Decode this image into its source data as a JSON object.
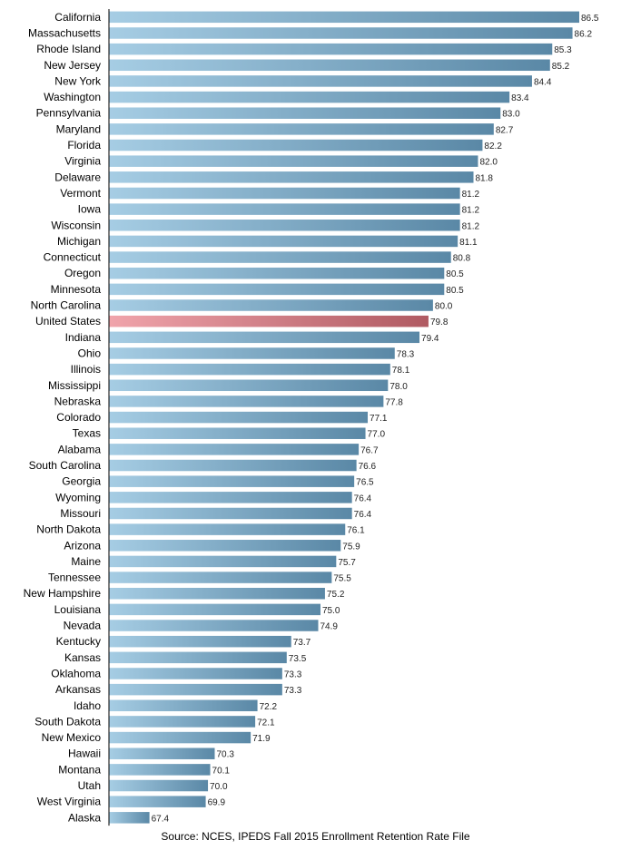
{
  "chart_data": {
    "type": "bar",
    "orientation": "horizontal",
    "categories": [
      "California",
      "Massachusetts",
      "Rhode Island",
      "New Jersey",
      "New York",
      "Washington",
      "Pennsylvania",
      "Maryland",
      "Florida",
      "Virginia",
      "Delaware",
      "Vermont",
      "Iowa",
      "Wisconsin",
      "Michigan",
      "Connecticut",
      "Oregon",
      "Minnesota",
      "North Carolina",
      "United States",
      "Indiana",
      "Ohio",
      "Illinois",
      "Mississippi",
      "Nebraska",
      "Colorado",
      "Texas",
      "Alabama",
      "South Carolina",
      "Georgia",
      "Wyoming",
      "Missouri",
      "North Dakota",
      "Arizona",
      "Maine",
      "Tennessee",
      "New Hampshire",
      "Louisiana",
      "Nevada",
      "Kentucky",
      "Kansas",
      "Oklahoma",
      "Arkansas",
      "Idaho",
      "South Dakota",
      "New Mexico",
      "Hawaii",
      "Montana",
      "Utah",
      "West Virginia",
      "Alaska"
    ],
    "values": [
      86.5,
      86.2,
      85.3,
      85.2,
      84.4,
      83.4,
      83.0,
      82.7,
      82.2,
      82.0,
      81.8,
      81.2,
      81.2,
      81.2,
      81.1,
      80.8,
      80.5,
      80.5,
      80.0,
      79.8,
      79.4,
      78.3,
      78.1,
      78.0,
      77.8,
      77.1,
      77.0,
      76.7,
      76.6,
      76.5,
      76.4,
      76.4,
      76.1,
      75.9,
      75.7,
      75.5,
      75.2,
      75.0,
      74.9,
      73.7,
      73.5,
      73.3,
      73.3,
      72.2,
      72.1,
      71.9,
      70.3,
      70.1,
      70.0,
      69.9,
      67.4
    ],
    "value_labels": [
      "86.5",
      "86.2",
      "85.3",
      "85.2",
      "84.4",
      "83.4",
      "83.0",
      "82.7",
      "82.2",
      "82.0",
      "81.8",
      "81.2",
      "81.2",
      "81.2",
      "81.1",
      "80.8",
      "80.5",
      "80.5",
      "80.0",
      "79.8",
      "79.4",
      "78.3",
      "78.1",
      "78.0",
      "77.8",
      "77.1",
      "77.0",
      "76.7",
      "76.6",
      "76.5",
      "76.4",
      "76.4",
      "76.1",
      "75.9",
      "75.7",
      "75.5",
      "75.2",
      "75.0",
      "74.9",
      "73.7",
      "73.5",
      "73.3",
      "73.3",
      "72.2",
      "72.1",
      "71.9",
      "70.3",
      "70.1",
      "70.0",
      "69.9",
      "67.4"
    ],
    "highlight": "United States",
    "xlim": [
      65.6,
      86.5
    ],
    "grid": false,
    "legend": "none",
    "title": "",
    "xlabel": "",
    "ylabel": "",
    "colors": {
      "bar": "#6a9dbb",
      "bar_light": "#a6cde4",
      "bar_dark": "#5a88a6",
      "highlight": "#c8707a",
      "highlight_light": "#f0a4ab",
      "highlight_dark": "#b05a62",
      "axis": "#000000"
    }
  },
  "footer": {
    "source": "Source: NCES, IPEDS Fall 2015 Enrollment Retention Rate File"
  }
}
